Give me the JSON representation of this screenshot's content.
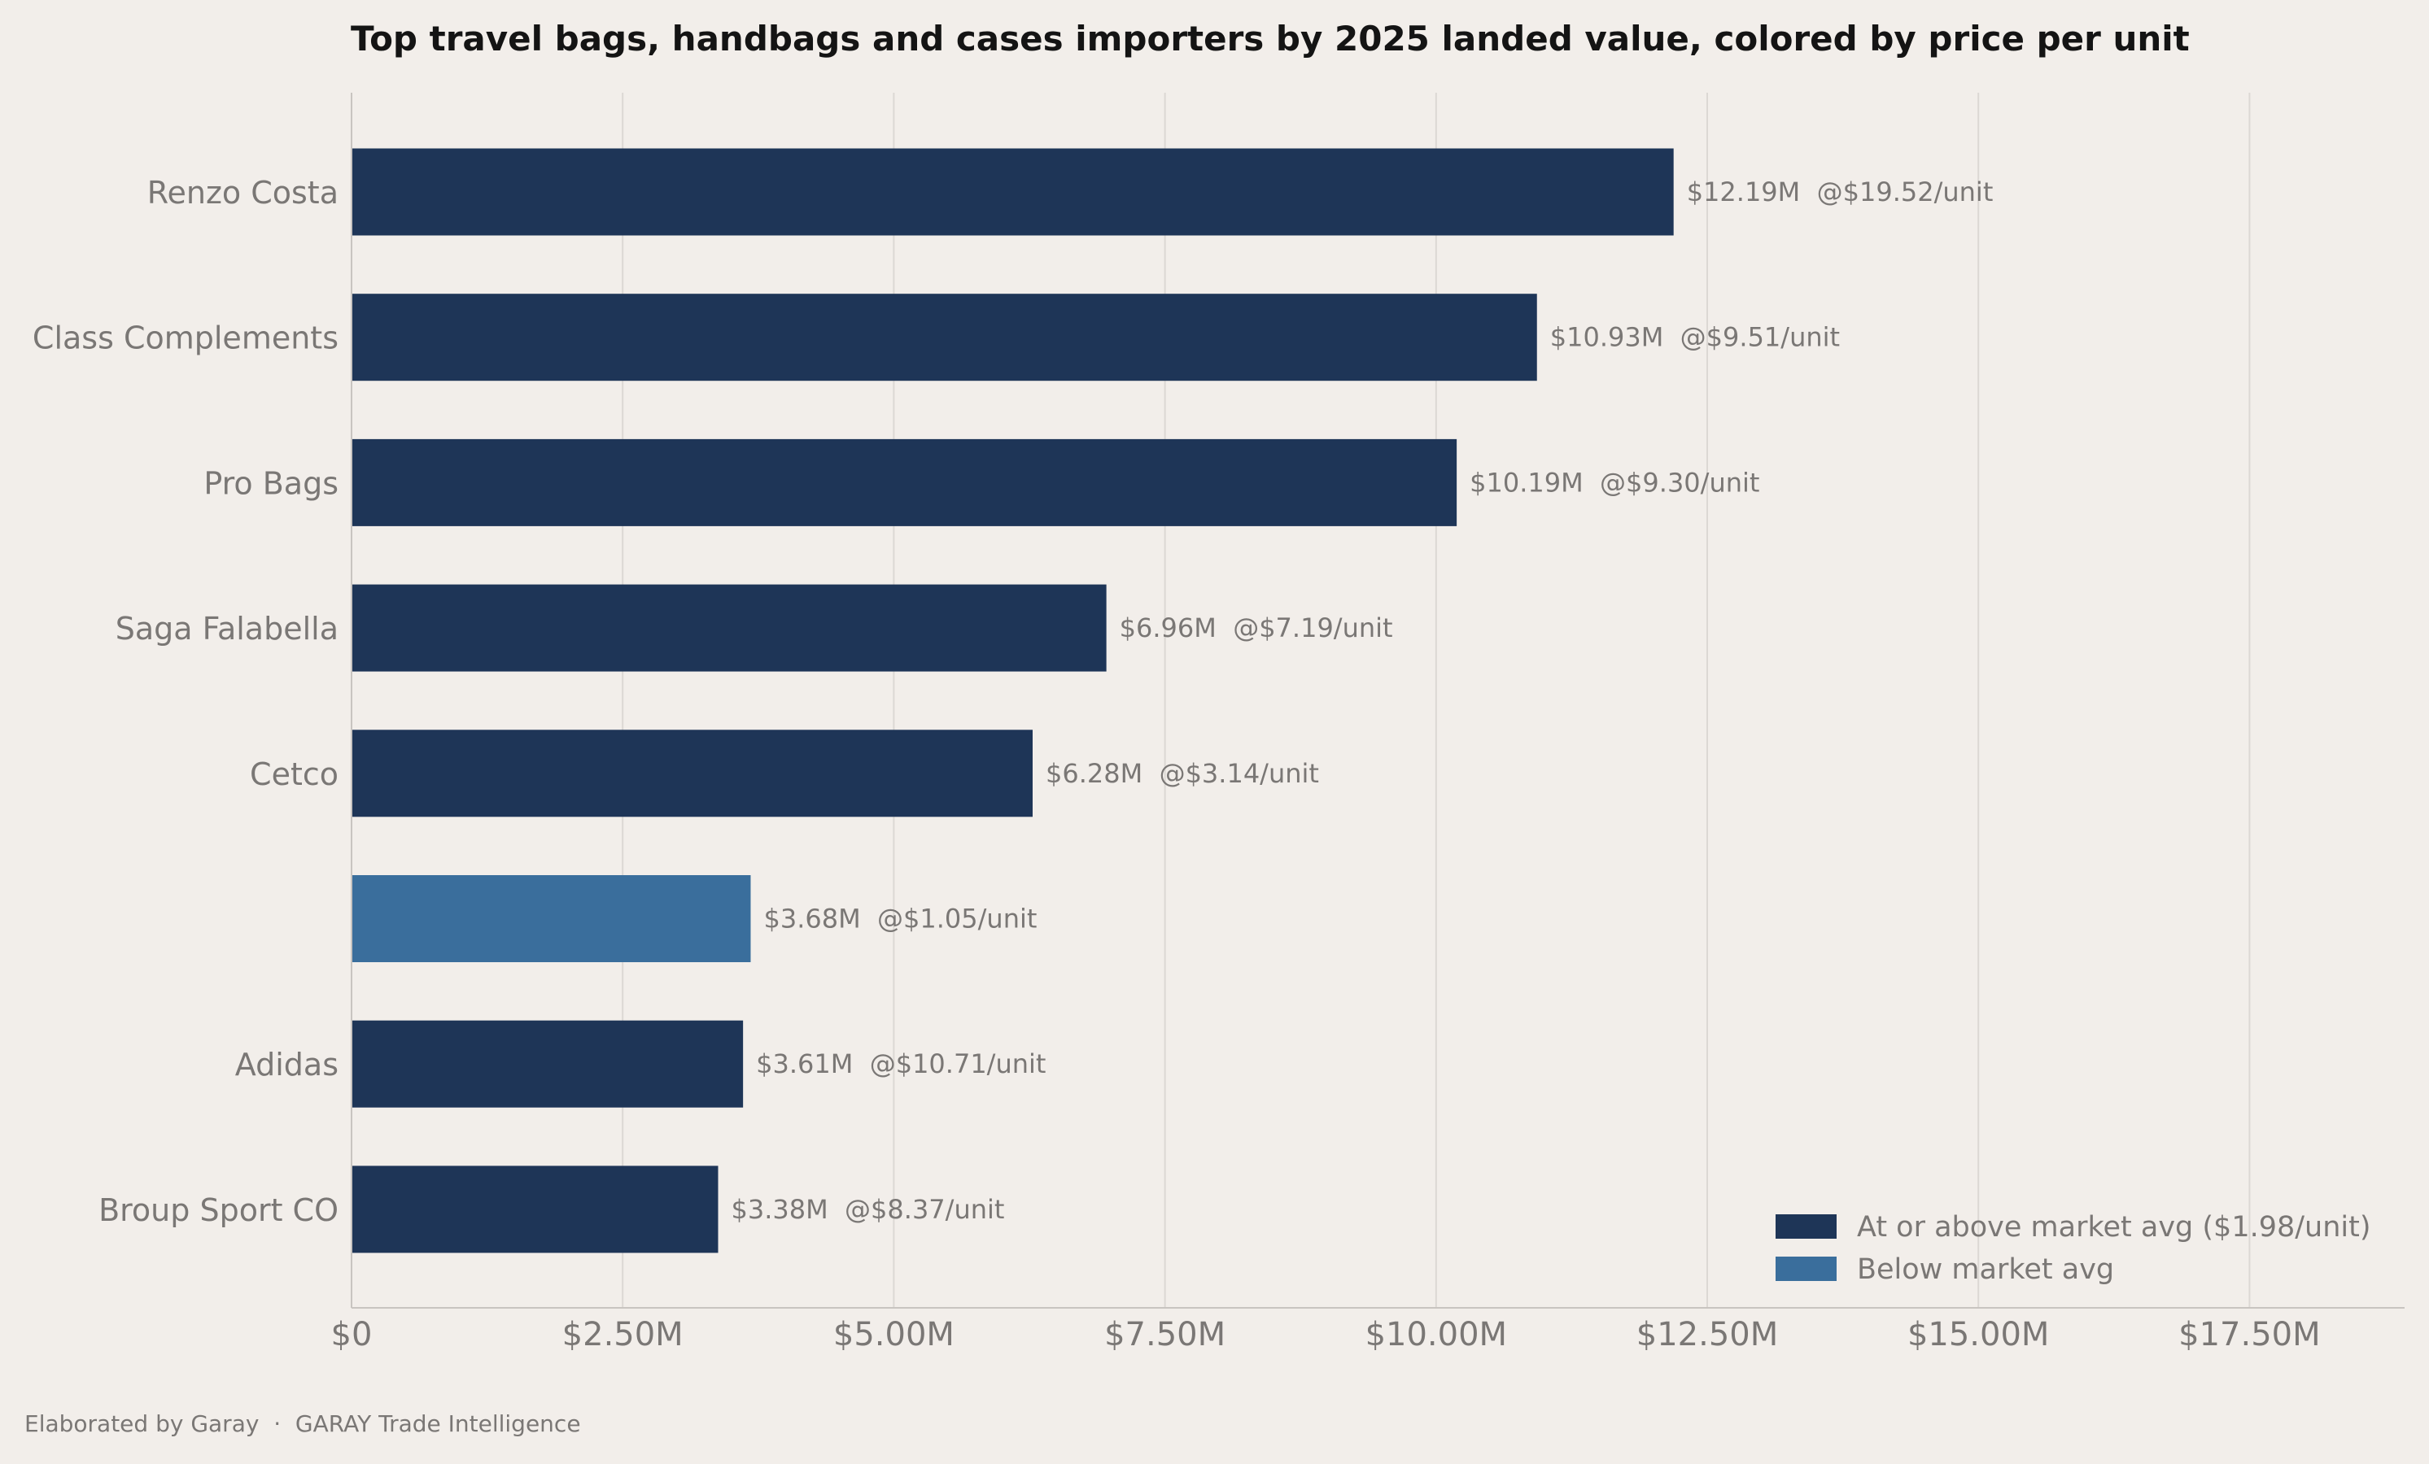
{
  "chart_data": {
    "type": "bar",
    "orientation": "horizontal",
    "title": "Top travel bags, handbags and cases importers by 2025 landed value, colored by price per unit",
    "xlabel": "",
    "ylabel": "",
    "xlim": [
      0,
      18.93
    ],
    "x_ticks": [
      0,
      2.5,
      5.0,
      7.5,
      10.0,
      12.5,
      15.0,
      17.5
    ],
    "x_tick_labels": [
      "$0",
      "$2.50M",
      "$5.00M",
      "$7.50M",
      "$10.00M",
      "$12.50M",
      "$15.00M",
      "$17.50M"
    ],
    "grid": "vertical",
    "legend_position": "bottom-right",
    "categories": [
      "Renzo Costa",
      "Class Complements",
      "Pro Bags",
      "Saga Falabella",
      "Cetco",
      "",
      "Adidas",
      "Broup Sport CO"
    ],
    "values": [
      12.19,
      10.93,
      10.19,
      6.96,
      6.28,
      3.68,
      3.61,
      3.38
    ],
    "price_per_unit": [
      19.52,
      9.51,
      9.3,
      7.19,
      3.14,
      1.05,
      10.71,
      8.37
    ],
    "data_labels": [
      "$12.19M  @$19.52/unit",
      "$10.93M  @$9.51/unit",
      "$10.19M  @$9.30/unit",
      "$6.96M  @$7.19/unit",
      "$6.28M  @$3.14/unit",
      "$3.68M  @$1.05/unit",
      "$3.61M  @$10.71/unit",
      "$3.38M  @$8.37/unit"
    ],
    "bar_group": [
      "above",
      "above",
      "above",
      "above",
      "above",
      "below",
      "above",
      "above"
    ],
    "legend": [
      {
        "key": "above",
        "label": "At or above market avg ($1.98/unit)",
        "color": "#1e3557"
      },
      {
        "key": "below",
        "label": "Below market avg",
        "color": "#3a6e9c"
      }
    ]
  },
  "footer": {
    "source_text": "Elaborated by Garay  ·  GARAY Trade Intelligence"
  },
  "colors": {
    "background": "#f2eeea",
    "title": "#141414",
    "muted_text": "#7a7775",
    "grid": "#dcd8d4",
    "axis": "#c8c4c0"
  }
}
